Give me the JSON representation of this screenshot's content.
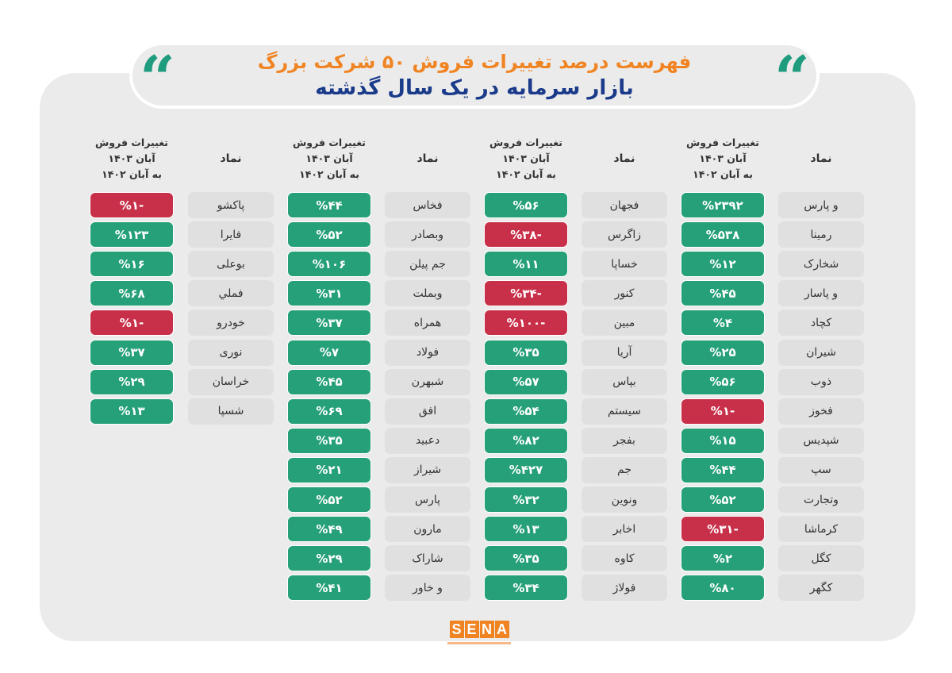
{
  "title": {
    "line1": "فهرست درصد تغییرات فروش ۵۰ شرکت بزرگ",
    "line2": "بازار سرمایه در یک سال گذشته"
  },
  "headers": {
    "symbol": "نماد",
    "change_line1": "تغییرات فروش",
    "change_line2": "آبان ۱۴۰۳",
    "change_line3": "به آبان ۱۴۰۲"
  },
  "quote_glyph": "“",
  "logo": {
    "letters": [
      "S",
      "E",
      "N",
      "A"
    ]
  },
  "colors": {
    "positive": "#25a078",
    "negative": "#c8304a",
    "title_orange": "#f08423",
    "title_blue": "#1a3a8a",
    "quote_green": "#1f9b7d"
  },
  "groups": [
    {
      "rows": [
        {
          "symbol": "و پارس",
          "change": "%۲۳۹۲",
          "negative": false
        },
        {
          "symbol": "رمینا",
          "change": "%۵۳۸",
          "negative": false
        },
        {
          "symbol": "شخارک",
          "change": "%۱۲",
          "negative": false
        },
        {
          "symbol": "و پاسار",
          "change": "%۴۵",
          "negative": false
        },
        {
          "symbol": "کچاد",
          "change": "%۴",
          "negative": false
        },
        {
          "symbol": "شیران",
          "change": "%۲۵",
          "negative": false
        },
        {
          "symbol": "ذوب",
          "change": "%۵۶",
          "negative": false
        },
        {
          "symbol": "فخوز",
          "change": "-%۱",
          "negative": true
        },
        {
          "symbol": "شپدیس",
          "change": "%۱۵",
          "negative": false
        },
        {
          "symbol": "سپ",
          "change": "%۴۴",
          "negative": false
        },
        {
          "symbol": "وتجارت",
          "change": "%۵۲",
          "negative": false
        },
        {
          "symbol": "کرماشا",
          "change": "-%۳۱",
          "negative": true
        },
        {
          "symbol": "کگل",
          "change": "%۲",
          "negative": false
        },
        {
          "symbol": "کگهر",
          "change": "%۸۰",
          "negative": false
        }
      ]
    },
    {
      "rows": [
        {
          "symbol": "فجهان",
          "change": "%۵۶",
          "negative": false
        },
        {
          "symbol": "زاگرس",
          "change": "-%۳۸",
          "negative": true
        },
        {
          "symbol": "خساپا",
          "change": "%۱۱",
          "negative": false
        },
        {
          "symbol": "کنور",
          "change": "-%۳۴",
          "negative": true
        },
        {
          "symbol": "مبین",
          "change": "-%۱۰۰",
          "negative": true
        },
        {
          "symbol": "آریا",
          "change": "%۳۵",
          "negative": false
        },
        {
          "symbol": "بپاس",
          "change": "%۵۷",
          "negative": false
        },
        {
          "symbol": "سیستم",
          "change": "%۵۴",
          "negative": false
        },
        {
          "symbol": "بفجر",
          "change": "%۸۲",
          "negative": false
        },
        {
          "symbol": "جم",
          "change": "%۴۲۷",
          "negative": false
        },
        {
          "symbol": "ونوین",
          "change": "%۳۲",
          "negative": false
        },
        {
          "symbol": "اخابر",
          "change": "%۱۳",
          "negative": false
        },
        {
          "symbol": "کاوه",
          "change": "%۳۵",
          "negative": false
        },
        {
          "symbol": "فولاژ",
          "change": "%۳۴",
          "negative": false
        }
      ]
    },
    {
      "rows": [
        {
          "symbol": "فخاس",
          "change": "%۴۴",
          "negative": false
        },
        {
          "symbol": "وبصادر",
          "change": "%۵۲",
          "negative": false
        },
        {
          "symbol": "جم پیلن",
          "change": "%۱۰۶",
          "negative": false
        },
        {
          "symbol": "وبملت",
          "change": "%۳۱",
          "negative": false
        },
        {
          "symbol": "همراه",
          "change": "%۳۷",
          "negative": false
        },
        {
          "symbol": "فولاد",
          "change": "%۷",
          "negative": false
        },
        {
          "symbol": "شبهرن",
          "change": "%۴۵",
          "negative": false
        },
        {
          "symbol": "افق",
          "change": "%۶۹",
          "negative": false
        },
        {
          "symbol": "دعبید",
          "change": "%۳۵",
          "negative": false
        },
        {
          "symbol": "شیراز",
          "change": "%۲۱",
          "negative": false
        },
        {
          "symbol": "پارس",
          "change": "%۵۲",
          "negative": false
        },
        {
          "symbol": "مارون",
          "change": "%۴۹",
          "negative": false
        },
        {
          "symbol": "شاراک",
          "change": "%۲۹",
          "negative": false
        },
        {
          "symbol": "و خاور",
          "change": "%۴۱",
          "negative": false
        }
      ]
    },
    {
      "rows": [
        {
          "symbol": "پاکشو",
          "change": "-%۱",
          "negative": true
        },
        {
          "symbol": "فایرا",
          "change": "%۱۲۳",
          "negative": false
        },
        {
          "symbol": "بوعلی",
          "change": "%۱۶",
          "negative": false
        },
        {
          "symbol": "فملي",
          "change": "%۶۸",
          "negative": false
        },
        {
          "symbol": "خودرو",
          "change": "-%۱",
          "negative": true
        },
        {
          "symbol": "نوری",
          "change": "%۳۷",
          "negative": false
        },
        {
          "symbol": "خراسان",
          "change": "%۲۹",
          "negative": false
        },
        {
          "symbol": "شسپا",
          "change": "%۱۳",
          "negative": false
        }
      ]
    }
  ]
}
